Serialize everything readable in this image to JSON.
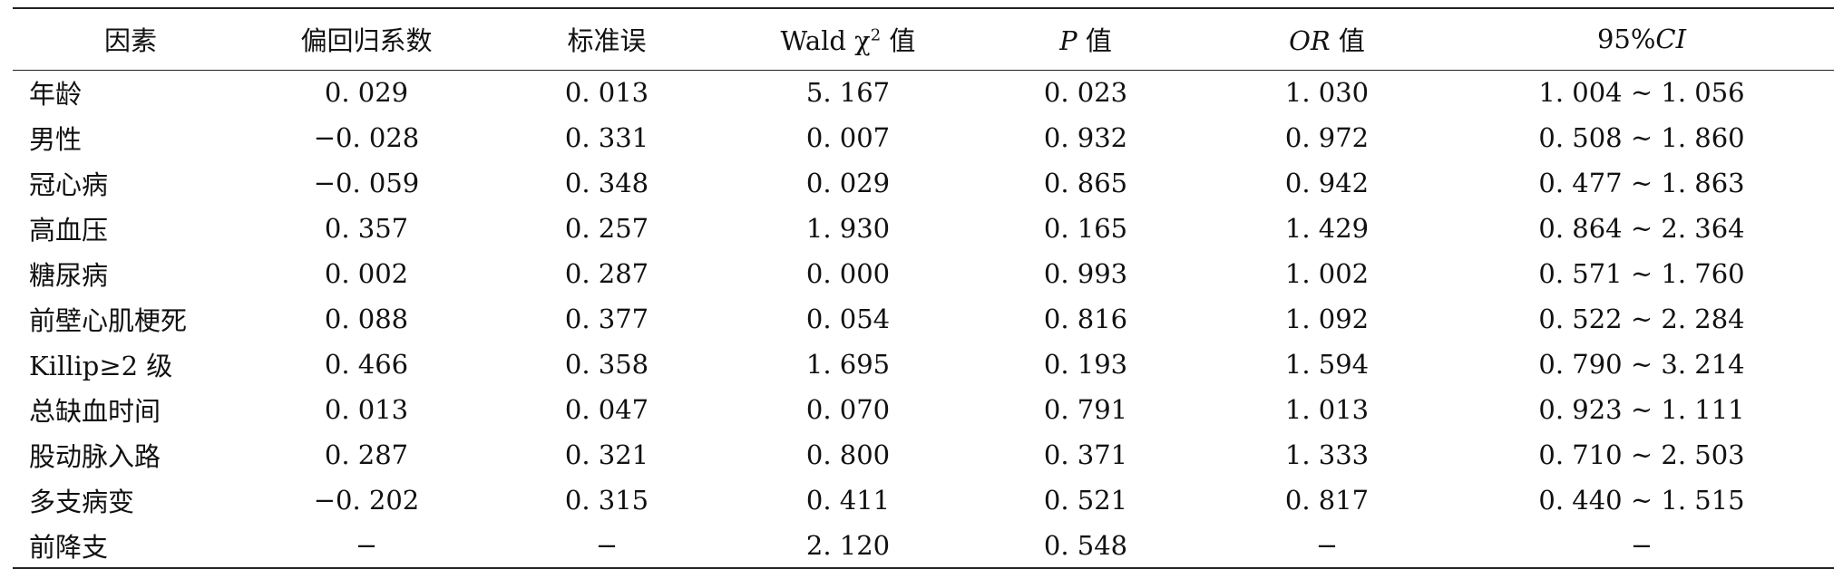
{
  "header": {
    "factor": "因素",
    "coef": "偏回归系数",
    "se": "标准误",
    "wald_prefix": "Wald χ",
    "wald_sup": "2",
    "wald_suffix": " 值",
    "p_italic": "P",
    "p_suffix": " 值",
    "or_italic": "OR",
    "or_suffix": " 值",
    "ci_prefix": "95%",
    "ci_italic": "CI"
  },
  "rows": [
    {
      "factor": "年龄",
      "coef": "0. 029",
      "se": "0. 013",
      "wald": "5. 167",
      "p": "0. 023",
      "or": "1. 030",
      "ci": "1. 004 ~ 1. 056"
    },
    {
      "factor": "男性",
      "coef": "−0. 028",
      "se": "0. 331",
      "wald": "0. 007",
      "p": "0. 932",
      "or": "0. 972",
      "ci": "0. 508 ~ 1. 860"
    },
    {
      "factor": "冠心病",
      "coef": "−0. 059",
      "se": "0. 348",
      "wald": "0. 029",
      "p": "0. 865",
      "or": "0. 942",
      "ci": "0. 477 ~ 1. 863"
    },
    {
      "factor": "高血压",
      "coef": "0. 357",
      "se": "0. 257",
      "wald": "1. 930",
      "p": "0. 165",
      "or": "1. 429",
      "ci": "0. 864 ~ 2. 364"
    },
    {
      "factor": "糖尿病",
      "coef": "0. 002",
      "se": "0. 287",
      "wald": "0. 000",
      "p": "0. 993",
      "or": "1. 002",
      "ci": "0. 571 ~ 1. 760"
    },
    {
      "factor": "前壁心肌梗死",
      "coef": "0. 088",
      "se": "0. 377",
      "wald": "0. 054",
      "p": "0. 816",
      "or": "1. 092",
      "ci": "0. 522 ~ 2. 284"
    },
    {
      "factor": "Killip≥2 级",
      "coef": "0. 466",
      "se": "0. 358",
      "wald": "1. 695",
      "p": "0. 193",
      "or": "1. 594",
      "ci": "0. 790 ~ 3. 214"
    },
    {
      "factor": "总缺血时间",
      "coef": "0. 013",
      "se": "0. 047",
      "wald": "0. 070",
      "p": "0. 791",
      "or": "1. 013",
      "ci": "0. 923 ~ 1. 111"
    },
    {
      "factor": "股动脉入路",
      "coef": "0. 287",
      "se": "0. 321",
      "wald": "0. 800",
      "p": "0. 371",
      "or": "1. 333",
      "ci": "0. 710 ~ 2. 503"
    },
    {
      "factor": "多支病变",
      "coef": "−0. 202",
      "se": "0. 315",
      "wald": "0. 411",
      "p": "0. 521",
      "or": "0. 817",
      "ci": "0. 440 ~ 1. 515"
    },
    {
      "factor": "前降支",
      "coef": "−",
      "se": "−",
      "wald": "2. 120",
      "p": "0. 548",
      "or": "−",
      "ci": "−"
    }
  ]
}
